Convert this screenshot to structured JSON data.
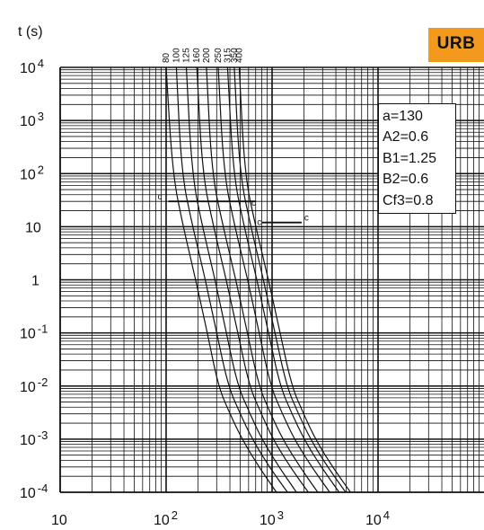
{
  "badge": {
    "label": "URB",
    "color": "#f39a1e"
  },
  "parameters": [
    "a=130",
    "A2=0.6",
    "B1=1.25",
    "B2=0.6",
    "Cf3=0.8"
  ],
  "chart_data": {
    "type": "line",
    "title": "",
    "xlabel": "",
    "ylabel": "t (s)",
    "x_scale": "log",
    "y_scale": "log",
    "xlim": [
      10,
      10000
    ],
    "ylim": [
      0.0001,
      10000
    ],
    "grid": true,
    "x_ticks": [
      {
        "base": "10",
        "exp": ""
      },
      {
        "base": "10",
        "exp": "2"
      },
      {
        "base": "10",
        "exp": "3"
      },
      {
        "base": "10",
        "exp": "4"
      }
    ],
    "y_ticks": [
      {
        "base": "10",
        "exp": "4"
      },
      {
        "base": "10",
        "exp": "3"
      },
      {
        "base": "10",
        "exp": "2"
      },
      {
        "base": "10",
        "exp": ""
      },
      {
        "base": "1",
        "exp": ""
      },
      {
        "base": "10",
        "exp": "-1"
      },
      {
        "base": "10",
        "exp": "-2"
      },
      {
        "base": "10",
        "exp": "-3"
      },
      {
        "base": "10",
        "exp": "-4"
      }
    ],
    "series": [
      {
        "name": "80",
        "x": [
          100,
          115,
          145,
          190,
          245,
          310,
          400,
          520,
          750,
          1100
        ],
        "y": [
          10000,
          100,
          10,
          1,
          0.1,
          0.01,
          0.003,
          0.001,
          0.0003,
          0.0001
        ]
      },
      {
        "name": "100",
        "x": [
          125,
          140,
          178,
          235,
          300,
          385,
          500,
          650,
          940,
          1400
        ],
        "y": [
          10000,
          100,
          10,
          1,
          0.1,
          0.01,
          0.003,
          0.001,
          0.0003,
          0.0001
        ]
      },
      {
        "name": "125",
        "x": [
          155,
          175,
          220,
          290,
          370,
          475,
          620,
          800,
          1160,
          1700
        ],
        "y": [
          10000,
          100,
          10,
          1,
          0.1,
          0.01,
          0.003,
          0.001,
          0.0003,
          0.0001
        ]
      },
      {
        "name": "160",
        "x": [
          195,
          220,
          280,
          370,
          475,
          610,
          790,
          1020,
          1480,
          2200
        ],
        "y": [
          10000,
          100,
          10,
          1,
          0.1,
          0.01,
          0.003,
          0.001,
          0.0003,
          0.0001
        ]
      },
      {
        "name": "200",
        "x": [
          240,
          270,
          345,
          455,
          585,
          750,
          970,
          1260,
          1830,
          2700
        ],
        "y": [
          10000,
          100,
          10,
          1,
          0.1,
          0.01,
          0.003,
          0.001,
          0.0003,
          0.0001
        ]
      },
      {
        "name": "250",
        "x": [
          310,
          350,
          445,
          590,
          755,
          970,
          1250,
          1620,
          2360,
          3500
        ],
        "y": [
          10000,
          100,
          10,
          1,
          0.1,
          0.01,
          0.003,
          0.001,
          0.0003,
          0.0001
        ]
      },
      {
        "name": "315",
        "x": [
          380,
          430,
          545,
          720,
          925,
          1190,
          1540,
          2000,
          2900,
          4300
        ],
        "y": [
          10000,
          100,
          10,
          1,
          0.1,
          0.01,
          0.003,
          0.001,
          0.0003,
          0.0001
        ]
      },
      {
        "name": "350",
        "x": [
          440,
          495,
          630,
          830,
          1065,
          1370,
          1770,
          2300,
          3340,
          4950
        ],
        "y": [
          10000,
          100,
          10,
          1,
          0.1,
          0.01,
          0.003,
          0.001,
          0.0003,
          0.0001
        ]
      },
      {
        "name": "400",
        "x": [
          490,
          550,
          700,
          925,
          1190,
          1530,
          1980,
          2560,
          3720,
          5500
        ],
        "y": [
          10000,
          100,
          10,
          1,
          0.1,
          0.01,
          0.003,
          0.001,
          0.0003,
          0.0001
        ]
      }
    ],
    "reference_lines": [
      {
        "label": "c",
        "x": [
          105,
          700
        ],
        "y": [
          30,
          30
        ]
      },
      {
        "label": "c",
        "x": [
          800,
          1900
        ],
        "y": [
          12,
          12
        ]
      }
    ],
    "markers": [
      {
        "label": "c",
        "x": 690,
        "y": 28
      },
      {
        "label": "c",
        "x": 780,
        "y": 12
      }
    ]
  }
}
